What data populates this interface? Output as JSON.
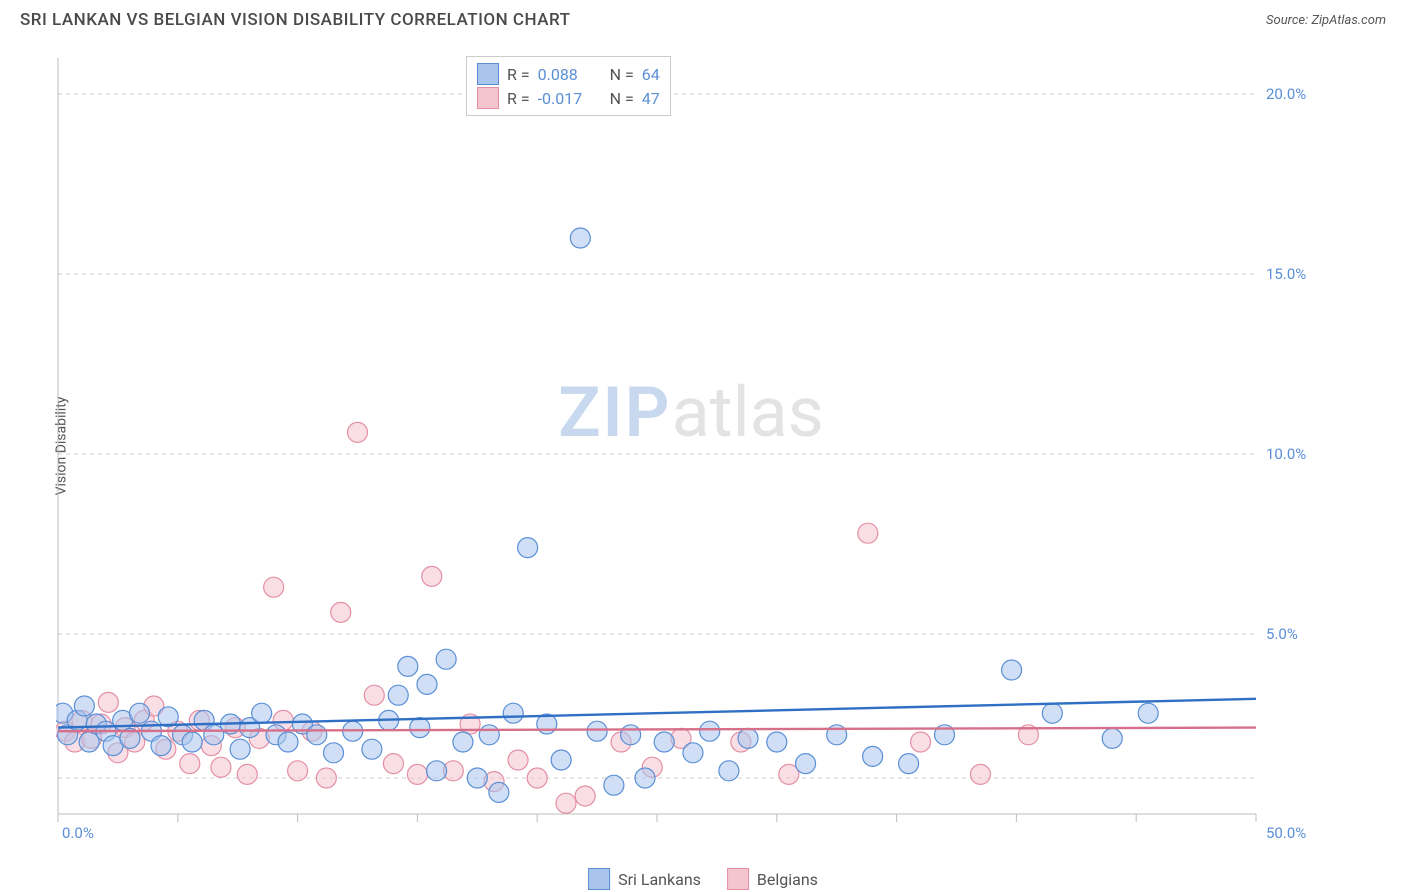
{
  "header": {
    "title": "SRI LANKAN VS BELGIAN VISION DISABILITY CORRELATION CHART",
    "source_prefix": "Source: ",
    "source": "ZipAtlas.com"
  },
  "ylabel": "Vision Disability",
  "watermark": {
    "zip": "ZIP",
    "atlas": "atlas"
  },
  "colors": {
    "series_a_fill": "#a9c5ec",
    "series_a_stroke": "#5a8fd6",
    "series_b_fill": "#f4c4cf",
    "series_b_stroke": "#e48fa4",
    "trend_a": "#2f6fc4",
    "trend_b": "#d66f8a",
    "label_blue": "#5a8fd6",
    "grid": "#cfcfcf",
    "axis": "#bdbdbd",
    "bg": "#ffffff"
  },
  "axes": {
    "xlim": [
      0,
      50
    ],
    "ylim": [
      0,
      21
    ],
    "x_ticks": [
      0,
      5,
      10,
      15,
      20,
      25,
      30,
      35,
      40,
      45,
      50
    ],
    "x_tick_labels": {
      "0": "0.0%",
      "50": "50.0%"
    },
    "y_gridlines": [
      1,
      5,
      10,
      15,
      20
    ],
    "y_tick_labels": {
      "5": "5.0%",
      "10": "10.0%",
      "15": "15.0%",
      "20": "20.0%"
    }
  },
  "legend_stats": {
    "rows": [
      {
        "swatch": "a",
        "r_label": "R =",
        "r": "0.088",
        "n_label": "N =",
        "n": "64"
      },
      {
        "swatch": "b",
        "r_label": "R =",
        "r": "-0.017",
        "n_label": "N =",
        "n": "47"
      }
    ]
  },
  "bottom_legend": {
    "a_label": "Sri Lankans",
    "b_label": "Belgians"
  },
  "trend_lines": {
    "a": {
      "x1": 0,
      "y1": 2.4,
      "x2": 50,
      "y2": 3.2
    },
    "b": {
      "x1": 0,
      "y1": 2.3,
      "x2": 50,
      "y2": 2.4
    }
  },
  "marker_radius": 10,
  "marker_opacity": 0.55,
  "series_a": [
    {
      "x": 0.2,
      "y": 2.8
    },
    {
      "x": 0.4,
      "y": 2.2
    },
    {
      "x": 0.8,
      "y": 2.6
    },
    {
      "x": 1.1,
      "y": 3.0
    },
    {
      "x": 1.3,
      "y": 2.0
    },
    {
      "x": 1.6,
      "y": 2.5
    },
    {
      "x": 2.0,
      "y": 2.3
    },
    {
      "x": 2.3,
      "y": 1.9
    },
    {
      "x": 2.7,
      "y": 2.6
    },
    {
      "x": 3.0,
      "y": 2.1
    },
    {
      "x": 3.4,
      "y": 2.8
    },
    {
      "x": 3.9,
      "y": 2.3
    },
    {
      "x": 4.3,
      "y": 1.9
    },
    {
      "x": 4.6,
      "y": 2.7
    },
    {
      "x": 5.2,
      "y": 2.2
    },
    {
      "x": 5.6,
      "y": 2.0
    },
    {
      "x": 6.1,
      "y": 2.6
    },
    {
      "x": 6.5,
      "y": 2.2
    },
    {
      "x": 7.2,
      "y": 2.5
    },
    {
      "x": 7.6,
      "y": 1.8
    },
    {
      "x": 8.0,
      "y": 2.4
    },
    {
      "x": 8.5,
      "y": 2.8
    },
    {
      "x": 9.1,
      "y": 2.2
    },
    {
      "x": 9.6,
      "y": 2.0
    },
    {
      "x": 10.2,
      "y": 2.5
    },
    {
      "x": 10.8,
      "y": 2.2
    },
    {
      "x": 11.5,
      "y": 1.7
    },
    {
      "x": 12.3,
      "y": 2.3
    },
    {
      "x": 13.1,
      "y": 1.8
    },
    {
      "x": 13.8,
      "y": 2.6
    },
    {
      "x": 14.2,
      "y": 3.3
    },
    {
      "x": 14.6,
      "y": 4.1
    },
    {
      "x": 15.1,
      "y": 2.4
    },
    {
      "x": 15.4,
      "y": 3.6
    },
    {
      "x": 15.8,
      "y": 1.2
    },
    {
      "x": 16.2,
      "y": 4.3
    },
    {
      "x": 16.9,
      "y": 2.0
    },
    {
      "x": 17.5,
      "y": 1.0
    },
    {
      "x": 18.0,
      "y": 2.2
    },
    {
      "x": 18.4,
      "y": 0.6
    },
    {
      "x": 19.0,
      "y": 2.8
    },
    {
      "x": 19.6,
      "y": 7.4
    },
    {
      "x": 20.4,
      "y": 2.5
    },
    {
      "x": 21.0,
      "y": 1.5
    },
    {
      "x": 21.8,
      "y": 16.0
    },
    {
      "x": 22.5,
      "y": 2.3
    },
    {
      "x": 23.2,
      "y": 0.8
    },
    {
      "x": 23.9,
      "y": 2.2
    },
    {
      "x": 24.5,
      "y": 1.0
    },
    {
      "x": 25.3,
      "y": 2.0
    },
    {
      "x": 26.5,
      "y": 1.7
    },
    {
      "x": 27.2,
      "y": 2.3
    },
    {
      "x": 28.0,
      "y": 1.2
    },
    {
      "x": 28.8,
      "y": 2.1
    },
    {
      "x": 30.0,
      "y": 2.0
    },
    {
      "x": 31.2,
      "y": 1.4
    },
    {
      "x": 32.5,
      "y": 2.2
    },
    {
      "x": 34.0,
      "y": 1.6
    },
    {
      "x": 35.5,
      "y": 1.4
    },
    {
      "x": 37.0,
      "y": 2.2
    },
    {
      "x": 39.8,
      "y": 4.0
    },
    {
      "x": 41.5,
      "y": 2.8
    },
    {
      "x": 44.0,
      "y": 2.1
    },
    {
      "x": 45.5,
      "y": 2.8
    }
  ],
  "series_b": [
    {
      "x": 0.3,
      "y": 2.3
    },
    {
      "x": 0.7,
      "y": 2.0
    },
    {
      "x": 1.0,
      "y": 2.6
    },
    {
      "x": 1.4,
      "y": 2.1
    },
    {
      "x": 1.8,
      "y": 2.5
    },
    {
      "x": 2.1,
      "y": 3.1
    },
    {
      "x": 2.5,
      "y": 1.7
    },
    {
      "x": 2.8,
      "y": 2.4
    },
    {
      "x": 3.2,
      "y": 2.0
    },
    {
      "x": 3.6,
      "y": 2.6
    },
    {
      "x": 4.0,
      "y": 3.0
    },
    {
      "x": 4.5,
      "y": 1.8
    },
    {
      "x": 5.0,
      "y": 2.3
    },
    {
      "x": 5.5,
      "y": 1.4
    },
    {
      "x": 5.9,
      "y": 2.6
    },
    {
      "x": 6.4,
      "y": 1.9
    },
    {
      "x": 6.8,
      "y": 1.3
    },
    {
      "x": 7.4,
      "y": 2.4
    },
    {
      "x": 7.9,
      "y": 1.1
    },
    {
      "x": 8.4,
      "y": 2.1
    },
    {
      "x": 9.0,
      "y": 6.3
    },
    {
      "x": 9.4,
      "y": 2.6
    },
    {
      "x": 10.0,
      "y": 1.2
    },
    {
      "x": 10.6,
      "y": 2.3
    },
    {
      "x": 11.2,
      "y": 1.0
    },
    {
      "x": 11.8,
      "y": 5.6
    },
    {
      "x": 12.5,
      "y": 10.6
    },
    {
      "x": 13.2,
      "y": 3.3
    },
    {
      "x": 14.0,
      "y": 1.4
    },
    {
      "x": 15.0,
      "y": 1.1
    },
    {
      "x": 15.6,
      "y": 6.6
    },
    {
      "x": 16.5,
      "y": 1.2
    },
    {
      "x": 17.2,
      "y": 2.5
    },
    {
      "x": 18.2,
      "y": 0.9
    },
    {
      "x": 19.2,
      "y": 1.5
    },
    {
      "x": 20.0,
      "y": 1.0
    },
    {
      "x": 21.2,
      "y": 0.3
    },
    {
      "x": 22.0,
      "y": 0.5
    },
    {
      "x": 23.5,
      "y": 2.0
    },
    {
      "x": 24.8,
      "y": 1.3
    },
    {
      "x": 26.0,
      "y": 2.1
    },
    {
      "x": 28.5,
      "y": 2.0
    },
    {
      "x": 30.5,
      "y": 1.1
    },
    {
      "x": 33.8,
      "y": 7.8
    },
    {
      "x": 36.0,
      "y": 2.0
    },
    {
      "x": 38.5,
      "y": 1.1
    },
    {
      "x": 40.5,
      "y": 2.2
    }
  ]
}
